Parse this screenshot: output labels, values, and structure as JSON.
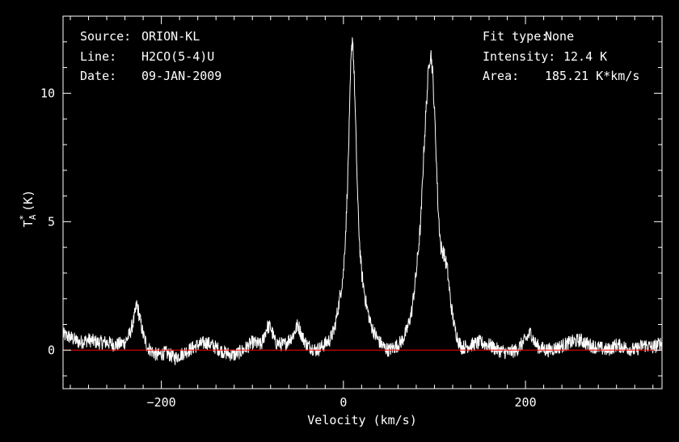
{
  "header": {
    "source_label": "Source:",
    "source_value": "ORION-KL",
    "line_label": "Line:",
    "line_value": "H2CO(5-4)U",
    "date_label": "Date:",
    "date_value": "09-JAN-2009",
    "fit_label": "Fit type:",
    "fit_value": "None",
    "intensity_label": "Intensity:",
    "intensity_value": "12.4 K",
    "area_label": "Area:",
    "area_value": "185.21 K*km/s"
  },
  "chart_data": {
    "type": "line",
    "xlabel": "Velocity (km/s)",
    "ylabel_main": "T",
    "ylabel_sup": "*",
    "ylabel_sub": "A",
    "ylabel_unit": "(K)",
    "xlim": [
      -308,
      350
    ],
    "ylim": [
      -1.5,
      13.0
    ],
    "x_ticks": [
      -200,
      0,
      200
    ],
    "y_ticks": [
      0,
      5,
      10
    ],
    "x_tick_labels": [
      "−200",
      "0",
      "200"
    ],
    "y_tick_labels": [
      "0",
      "5",
      "10"
    ],
    "baseline": 0,
    "colors": {
      "spectrum": "#ffffff",
      "baseline": "#ff0000",
      "axes": "#ffffff",
      "background": "#000000"
    },
    "series": [
      {
        "values": [
          [
            -308,
            0.6
          ],
          [
            -300,
            0.5
          ],
          [
            -290,
            0.3
          ],
          [
            -280,
            0.4
          ],
          [
            -270,
            0.3
          ],
          [
            -260,
            0.3
          ],
          [
            -250,
            0.2
          ],
          [
            -240,
            0.3
          ],
          [
            -235,
            0.6
          ],
          [
            -230,
            1.2
          ],
          [
            -227,
            1.8
          ],
          [
            -224,
            1.3
          ],
          [
            -220,
            0.6
          ],
          [
            -215,
            0.1
          ],
          [
            -205,
            -0.2
          ],
          [
            -195,
            -0.1
          ],
          [
            -185,
            -0.3
          ],
          [
            -175,
            -0.1
          ],
          [
            -165,
            0.1
          ],
          [
            -160,
            0.2
          ],
          [
            -150,
            0.3
          ],
          [
            -140,
            0.1
          ],
          [
            -130,
            -0.1
          ],
          [
            -120,
            -0.2
          ],
          [
            -110,
            0.0
          ],
          [
            -100,
            0.3
          ],
          [
            -90,
            0.2
          ],
          [
            -84,
            0.9
          ],
          [
            -80,
            0.9
          ],
          [
            -75,
            0.3
          ],
          [
            -65,
            0.2
          ],
          [
            -55,
            0.6
          ],
          [
            -50,
            1.0
          ],
          [
            -45,
            0.5
          ],
          [
            -40,
            0.2
          ],
          [
            -30,
            0.0
          ],
          [
            -25,
            0.1
          ],
          [
            -15,
            0.4
          ],
          [
            -10,
            0.8
          ],
          [
            -5,
            1.8
          ],
          [
            0,
            3.0
          ],
          [
            3,
            5.0
          ],
          [
            5,
            7.0
          ],
          [
            7,
            9.5
          ],
          [
            8,
            11.0
          ],
          [
            10,
            12.3
          ],
          [
            12,
            10.5
          ],
          [
            14,
            8.0
          ],
          [
            16,
            5.5
          ],
          [
            18,
            4.0
          ],
          [
            20,
            3.0
          ],
          [
            25,
            1.8
          ],
          [
            30,
            1.0
          ],
          [
            35,
            0.6
          ],
          [
            40,
            0.3
          ],
          [
            45,
            0.1
          ],
          [
            50,
            0.0
          ],
          [
            55,
            0.1
          ],
          [
            60,
            0.2
          ],
          [
            65,
            0.4
          ],
          [
            70,
            0.8
          ],
          [
            75,
            1.5
          ],
          [
            80,
            3.0
          ],
          [
            85,
            5.0
          ],
          [
            88,
            7.5
          ],
          [
            91,
            9.5
          ],
          [
            94,
            11.2
          ],
          [
            96,
            11.6
          ],
          [
            98,
            10.8
          ],
          [
            101,
            8.5
          ],
          [
            104,
            5.5
          ],
          [
            107,
            4.0
          ],
          [
            110,
            3.8
          ],
          [
            114,
            3.2
          ],
          [
            118,
            1.8
          ],
          [
            122,
            0.9
          ],
          [
            126,
            0.4
          ],
          [
            130,
            0.1
          ],
          [
            140,
            0.2
          ],
          [
            150,
            0.3
          ],
          [
            160,
            0.2
          ],
          [
            170,
            0.0
          ],
          [
            180,
            -0.1
          ],
          [
            190,
            0.0
          ],
          [
            195,
            0.2
          ],
          [
            200,
            0.4
          ],
          [
            206,
            0.7
          ],
          [
            210,
            0.3
          ],
          [
            215,
            0.1
          ],
          [
            225,
            0.0
          ],
          [
            235,
            0.1
          ],
          [
            250,
            0.3
          ],
          [
            260,
            0.4
          ],
          [
            270,
            0.2
          ],
          [
            280,
            0.1
          ],
          [
            290,
            0.0
          ],
          [
            300,
            0.2
          ],
          [
            310,
            0.1
          ],
          [
            320,
            0.0
          ],
          [
            330,
            0.2
          ],
          [
            340,
            0.1
          ],
          [
            350,
            0.3
          ]
        ],
        "noise_amplitude": 0.28
      }
    ]
  }
}
